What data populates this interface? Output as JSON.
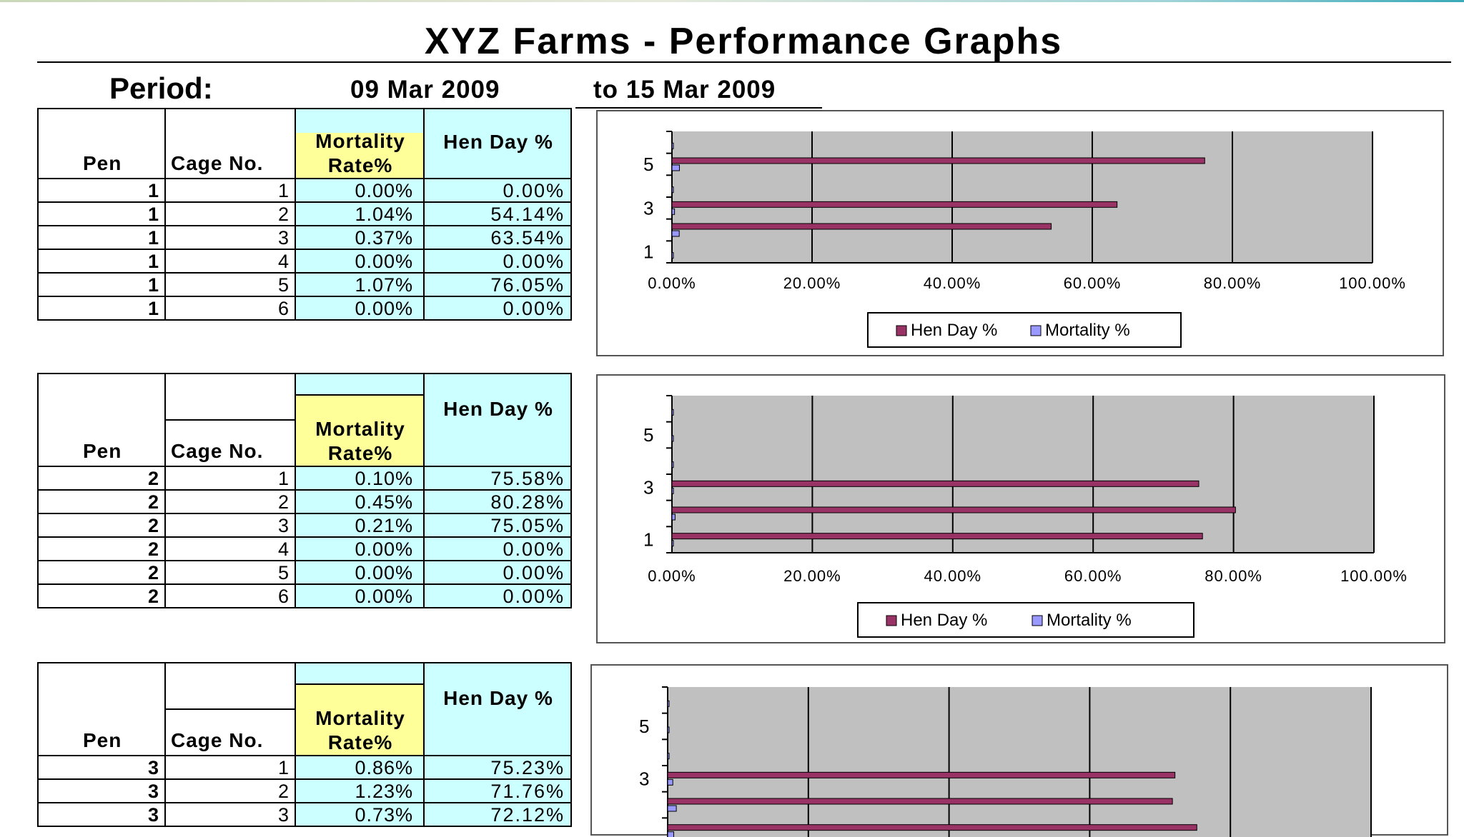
{
  "title": "XYZ Farms - Performance Graphs",
  "period": {
    "label": "Period:",
    "from": "09 Mar 2009",
    "to": "to 15 Mar 2009"
  },
  "columns": {
    "pen": "Pen",
    "cage": "Cage No.",
    "mortality_line1": "Mortality",
    "mortality_line2": "Rate%",
    "henday": "Hen Day %"
  },
  "colors": {
    "hen_day": "#993366",
    "mortality": "#9999ff",
    "plot_bg": "#c0c0c0",
    "table_fill": "#ccffff",
    "mortality_header": "#ffff99"
  },
  "pens": [
    {
      "rows": [
        {
          "pen": "1",
          "cage": "1",
          "mortality": "0.00%",
          "henday": "0.00%"
        },
        {
          "pen": "1",
          "cage": "2",
          "mortality": "1.04%",
          "henday": "54.14%"
        },
        {
          "pen": "1",
          "cage": "3",
          "mortality": "0.37%",
          "henday": "63.54%"
        },
        {
          "pen": "1",
          "cage": "4",
          "mortality": "0.00%",
          "henday": "0.00%"
        },
        {
          "pen": "1",
          "cage": "5",
          "mortality": "1.07%",
          "henday": "76.05%"
        },
        {
          "pen": "1",
          "cage": "6",
          "mortality": "0.00%",
          "henday": "0.00%"
        }
      ]
    },
    {
      "rows": [
        {
          "pen": "2",
          "cage": "1",
          "mortality": "0.10%",
          "henday": "75.58%"
        },
        {
          "pen": "2",
          "cage": "2",
          "mortality": "0.45%",
          "henday": "80.28%"
        },
        {
          "pen": "2",
          "cage": "3",
          "mortality": "0.21%",
          "henday": "75.05%"
        },
        {
          "pen": "2",
          "cage": "4",
          "mortality": "0.00%",
          "henday": "0.00%"
        },
        {
          "pen": "2",
          "cage": "5",
          "mortality": "0.00%",
          "henday": "0.00%"
        },
        {
          "pen": "2",
          "cage": "6",
          "mortality": "0.00%",
          "henday": "0.00%"
        }
      ]
    },
    {
      "rows": [
        {
          "pen": "3",
          "cage": "1",
          "mortality": "0.86%",
          "henday": "75.23%"
        },
        {
          "pen": "3",
          "cage": "2",
          "mortality": "1.23%",
          "henday": "71.76%"
        },
        {
          "pen": "3",
          "cage": "3",
          "mortality": "0.73%",
          "henday": "72.12%"
        }
      ]
    }
  ],
  "chart_data": [
    {
      "type": "bar",
      "orientation": "horizontal",
      "categories": [
        "1",
        "2",
        "3",
        "4",
        "5",
        "6"
      ],
      "y_tick_labels": [
        "1",
        "3",
        "5"
      ],
      "x_ticks": [
        "0.00%",
        "20.00%",
        "40.00%",
        "60.00%",
        "80.00%",
        "100.00%"
      ],
      "xlim": [
        0,
        100
      ],
      "series": [
        {
          "name": "Hen Day %",
          "values": [
            0.0,
            54.14,
            63.54,
            0.0,
            76.05,
            0.0
          ]
        },
        {
          "name": "Mortality %",
          "values": [
            0.0,
            1.04,
            0.37,
            0.0,
            1.07,
            0.0
          ]
        }
      ],
      "grid": true,
      "legend": "bottom"
    },
    {
      "type": "bar",
      "orientation": "horizontal",
      "categories": [
        "1",
        "2",
        "3",
        "4",
        "5",
        "6"
      ],
      "y_tick_labels": [
        "1",
        "3",
        "5"
      ],
      "x_ticks": [
        "0.00%",
        "20.00%",
        "40.00%",
        "60.00%",
        "80.00%",
        "100.00%"
      ],
      "xlim": [
        0,
        100
      ],
      "series": [
        {
          "name": "Hen Day %",
          "values": [
            75.58,
            80.28,
            75.05,
            0.0,
            0.0,
            0.0
          ]
        },
        {
          "name": "Mortality %",
          "values": [
            0.1,
            0.45,
            0.21,
            0.0,
            0.0,
            0.0
          ]
        }
      ],
      "grid": true,
      "legend": "bottom"
    },
    {
      "type": "bar",
      "orientation": "horizontal",
      "categories": [
        "1",
        "2",
        "3",
        "4",
        "5",
        "6"
      ],
      "y_tick_labels": [
        "3",
        "5"
      ],
      "x_ticks": [],
      "xlim": [
        0,
        100
      ],
      "series": [
        {
          "name": "Hen Day %",
          "values": [
            75.23,
            71.76,
            72.12,
            0.0,
            0.0,
            0.0
          ]
        },
        {
          "name": "Mortality %",
          "values": [
            0.86,
            1.23,
            0.73,
            0.0,
            0.0,
            0.0
          ]
        }
      ],
      "grid": true,
      "legend": "none"
    }
  ]
}
